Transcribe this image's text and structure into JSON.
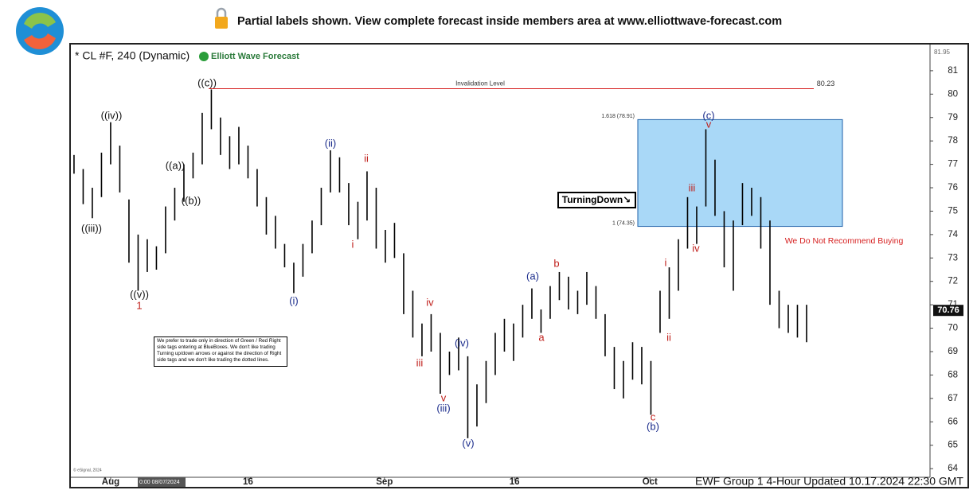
{
  "header": {
    "banner": "Partial labels shown. View complete forecast inside members area at www.elliottwave-forecast.com"
  },
  "chart_data": {
    "type": "range_bar",
    "title": "* CL #F, 240 (Dynamic)",
    "brand": "Elliott Wave Forecast",
    "footer": "EWF Group 1 4-Hour Updated 10.17.2024 22:30 GMT",
    "copyright": "© eSignal, 2024",
    "cursor_date": "0:00 08/07/2024",
    "x": [
      -4,
      -3,
      -2,
      -1,
      0,
      1,
      2,
      3,
      4,
      5,
      6,
      7,
      8,
      9,
      10,
      11,
      12,
      13,
      14,
      15,
      16,
      17,
      18,
      19,
      20,
      21,
      22,
      23,
      24,
      25,
      26,
      27,
      28,
      29,
      30,
      31,
      32,
      33,
      34,
      35,
      36,
      37,
      38,
      39,
      40,
      41,
      42,
      43,
      44,
      45,
      46,
      47,
      48,
      49,
      50,
      51,
      52,
      53,
      54,
      55,
      56,
      57,
      58,
      59,
      60,
      61,
      62,
      63,
      64,
      65,
      66,
      67,
      68,
      69,
      70,
      71,
      72,
      73,
      74,
      75,
      76
    ],
    "series": [
      {
        "color": "#000000",
        "high": [
          77.4,
          76.8,
          76.0,
          77.5,
          78.8,
          77.8,
          75.5,
          74.0,
          73.8,
          73.5,
          75.2,
          76.0,
          77.0,
          77.5,
          79.2,
          80.2,
          79.0,
          78.2,
          78.6,
          77.8,
          76.8,
          75.6,
          74.8,
          73.6,
          72.8,
          73.6,
          74.6,
          76.0,
          77.6,
          77.3,
          76.2,
          75.4,
          76.7,
          76.0,
          74.2,
          74.5,
          73.2,
          71.6,
          70.2,
          70.6,
          69.8,
          69.0,
          69.6,
          68.8,
          67.6,
          68.6,
          69.8,
          70.4,
          70.2,
          71.0,
          71.7,
          70.8,
          71.8,
          72.4,
          72.2,
          71.6,
          72.4,
          71.8,
          70.6,
          69.2,
          68.6,
          69.4,
          69.2,
          68.6,
          71.6,
          72.6,
          73.8,
          75.6,
          75.2,
          78.5,
          77.2,
          75.0,
          74.6,
          76.2,
          76.0,
          75.6,
          74.6,
          71.6,
          71.0,
          71.0,
          71.0
        ],
        "low": [
          76.6,
          75.3,
          74.7,
          75.6,
          77.0,
          75.8,
          72.8,
          71.6,
          72.4,
          72.5,
          73.2,
          74.6,
          75.4,
          76.4,
          77.0,
          78.5,
          77.4,
          76.8,
          77.0,
          76.4,
          75.2,
          74.0,
          73.4,
          72.6,
          71.5,
          72.2,
          73.2,
          74.4,
          75.8,
          75.8,
          74.4,
          73.8,
          74.6,
          73.4,
          72.8,
          73.0,
          70.6,
          69.6,
          68.8,
          69.0,
          67.2,
          68.0,
          68.2,
          65.3,
          65.8,
          66.8,
          68.0,
          69.0,
          68.6,
          69.6,
          70.4,
          69.8,
          70.4,
          71.2,
          70.8,
          70.6,
          71.0,
          70.4,
          68.8,
          67.4,
          67.0,
          67.8,
          67.6,
          66.3,
          69.8,
          70.4,
          71.6,
          73.4,
          73.6,
          75.2,
          74.8,
          72.6,
          71.6,
          74.4,
          74.8,
          73.4,
          71.0,
          70.0,
          69.8,
          69.6,
          69.4
        ]
      }
    ],
    "last_price": 70.76,
    "top_label": 81.95,
    "xlim": [
      -4.43,
      89.48
    ],
    "xticks": [
      {
        "value": 0,
        "label": "Aug"
      },
      {
        "value": 15,
        "label": "16"
      },
      {
        "value": 29.9,
        "label": "Sep"
      },
      {
        "value": 44.1,
        "label": "16"
      },
      {
        "value": 58.9,
        "label": "Oct"
      }
    ],
    "ylim": [
      63.63,
      82.05
    ],
    "yticks": [
      64,
      65,
      66,
      67,
      68,
      69,
      70,
      71,
      72,
      73,
      74,
      75,
      76,
      77,
      78,
      79,
      80,
      81
    ],
    "grid": false,
    "invalidation": {
      "text": "Invalidation Level",
      "value": 80.23,
      "color": "#d62020"
    },
    "blue_box": {
      "color": "#a9d8f7",
      "top": {
        "value": 78.91,
        "label": "1.618 (78.91)"
      },
      "bottom": {
        "value": 74.35,
        "label": "1 (74.35)"
      }
    },
    "turning_tag": "TurningDown↘",
    "warning": {
      "text": "We Do Not Recommend Buying",
      "color": "#d62020"
    },
    "note": "We prefer to trade only in direction of Green / Red Right side tags entering at BlueBoxes. We don't like trading Turning up/down arrows or against the direction of Right side tags and we don't like trading the dotted lines.",
    "annotations": [
      {
        "text": "((c))",
        "color": "#111111"
      },
      {
        "text": "((iv))",
        "color": "#111111"
      },
      {
        "text": "((iii))",
        "color": "#111111"
      },
      {
        "text": "((v))",
        "color": "#111111"
      },
      {
        "text": "1",
        "color": "#c0201c"
      },
      {
        "text": "((a))",
        "color": "#111111"
      },
      {
        "text": "((b))",
        "color": "#111111"
      },
      {
        "text": "(i)",
        "color": "#1c2d8c"
      },
      {
        "text": "(ii)",
        "color": "#1c2d8c"
      },
      {
        "text": "i",
        "color": "#c0201c"
      },
      {
        "text": "ii",
        "color": "#c0201c"
      },
      {
        "text": "iii",
        "color": "#c0201c"
      },
      {
        "text": "iv",
        "color": "#c0201c"
      },
      {
        "text": "v",
        "color": "#c0201c"
      },
      {
        "text": "(iii)",
        "color": "#1c2d8c"
      },
      {
        "text": "(iv)",
        "color": "#1c2d8c"
      },
      {
        "text": "(v)",
        "color": "#1c2d8c"
      },
      {
        "text": "(a)",
        "color": "#1c2d8c"
      },
      {
        "text": "a",
        "color": "#c0201c"
      },
      {
        "text": "b",
        "color": "#c0201c"
      },
      {
        "text": "c",
        "color": "#c0201c"
      },
      {
        "text": "(b)",
        "color": "#1c2d8c"
      },
      {
        "text": "i",
        "color": "#c0201c"
      },
      {
        "text": "ii",
        "color": "#c0201c"
      },
      {
        "text": "iii",
        "color": "#c0201c"
      },
      {
        "text": "iv",
        "color": "#c0201c"
      },
      {
        "text": "(c)",
        "color": "#1c2d8c"
      },
      {
        "text": "v",
        "color": "#c0201c"
      }
    ]
  }
}
